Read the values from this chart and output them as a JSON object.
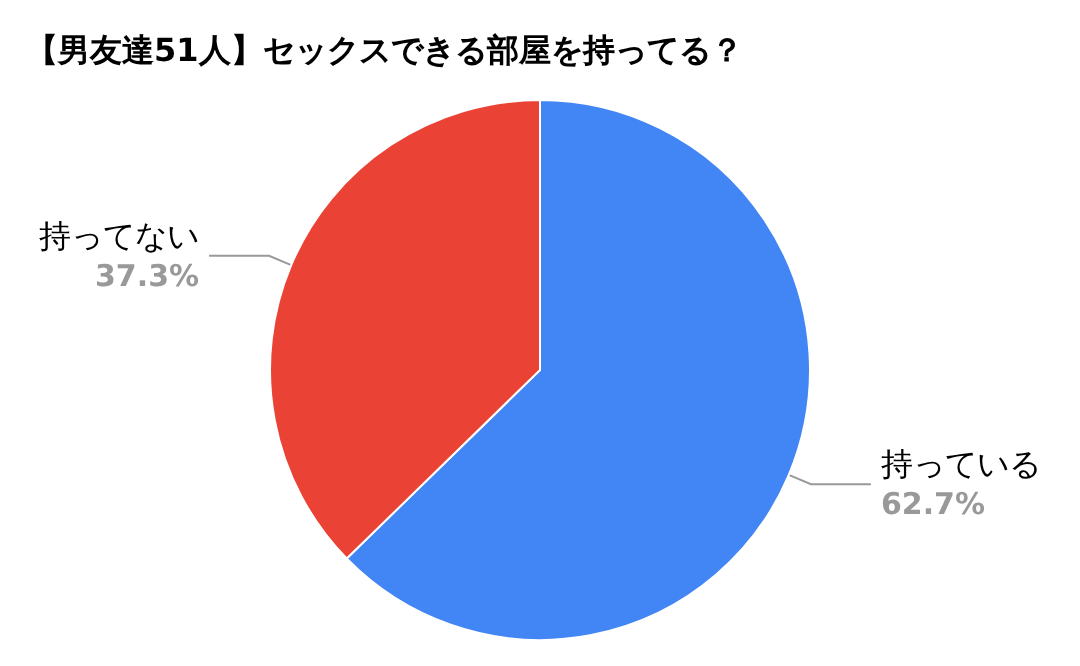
{
  "chart_data": {
    "type": "pie",
    "title": "【男友達51人】セックスできる部屋を持ってる？",
    "categories": [
      "持っている",
      "持ってない"
    ],
    "values": [
      62.7,
      37.3
    ],
    "value_labels": [
      "62.7%",
      "37.3%"
    ],
    "colors": [
      "#4285f4",
      "#ea4335"
    ]
  }
}
